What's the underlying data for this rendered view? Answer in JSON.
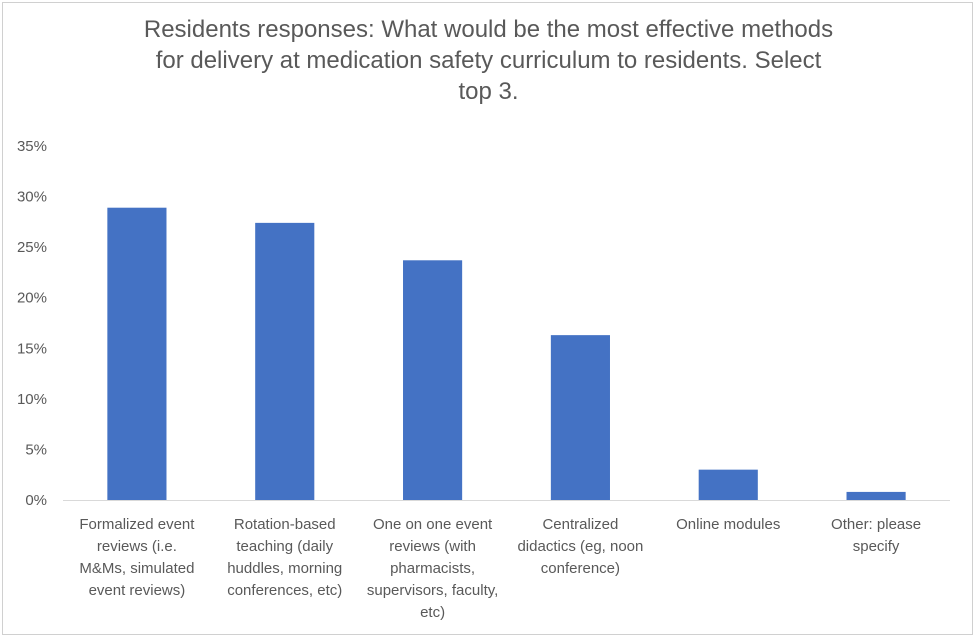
{
  "chart_data": {
    "type": "bar",
    "title_lines": [
      "Residents responses: What would be the most effective methods",
      "for delivery at medication safety curriculum to residents. Select",
      "top 3."
    ],
    "categories": [
      [
        "Formalized event",
        "reviews (i.e.",
        "M&Ms, simulated",
        "event reviews)"
      ],
      [
        "Rotation-based",
        "teaching (daily",
        "huddles, morning",
        "conferences, etc)"
      ],
      [
        "One on one event",
        "reviews (with",
        "pharmacists,",
        "supervisors, faculty,",
        "etc)"
      ],
      [
        "Centralized",
        "didactics (eg, noon",
        "conference)"
      ],
      [
        "Online modules"
      ],
      [
        "Other: please",
        "specify"
      ]
    ],
    "values": [
      0.289,
      0.274,
      0.237,
      0.163,
      0.03,
      0.008
    ],
    "ylim": [
      0,
      0.35
    ],
    "ytick_step": 0.05,
    "ytick_labels": [
      "0%",
      "5%",
      "10%",
      "15%",
      "20%",
      "25%",
      "30%",
      "35%"
    ],
    "xlabel": "",
    "ylabel": "",
    "grid": false,
    "legend": "none",
    "bar_color": "#4472C4",
    "axis_color": "#d9d9d9"
  }
}
